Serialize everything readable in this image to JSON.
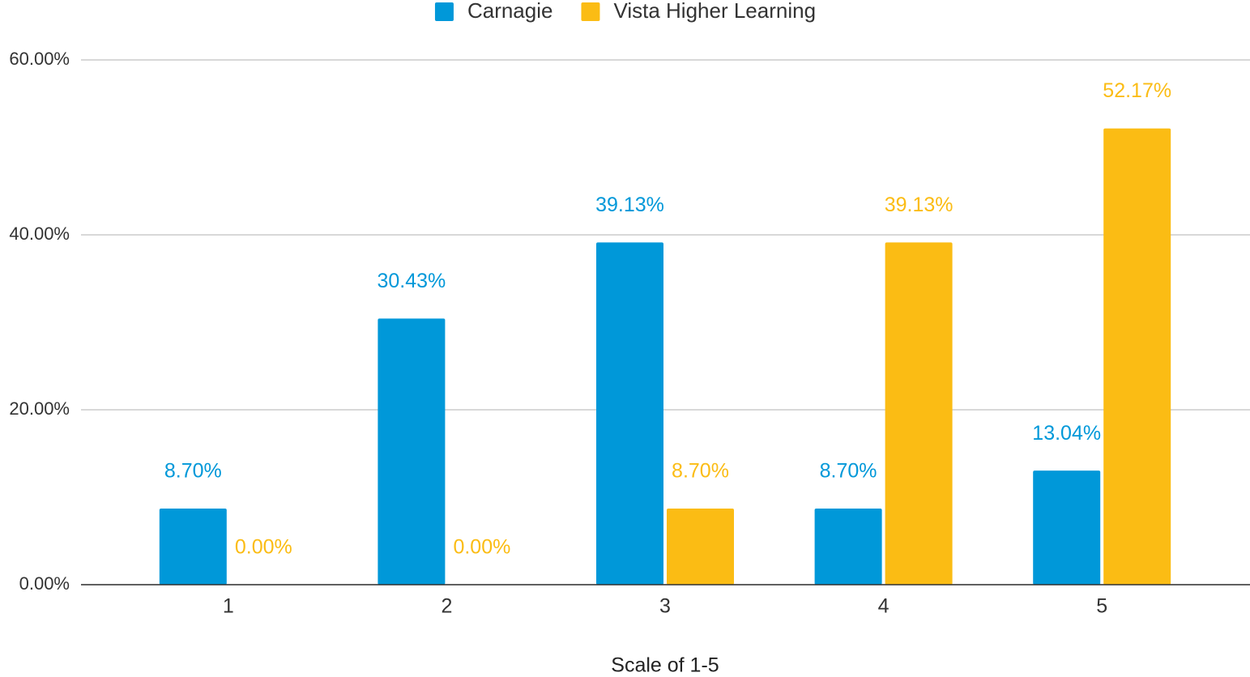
{
  "chart_data": {
    "type": "bar",
    "x_label": "Scale of 1-5",
    "categories": [
      "1",
      "2",
      "3",
      "4",
      "5"
    ],
    "series": [
      {
        "name": "Carnagie",
        "color": "#0098d9",
        "values": [
          8.7,
          30.43,
          39.13,
          8.7,
          13.04
        ],
        "value_labels": [
          "8.70%",
          "30.43%",
          "39.13%",
          "8.70%",
          "13.04%"
        ]
      },
      {
        "name": "Vista Higher Learning",
        "color": "#fbbc14",
        "values": [
          0.0,
          0.0,
          8.7,
          39.13,
          52.17
        ],
        "value_labels": [
          "0.00%",
          "0.00%",
          "8.70%",
          "39.13%",
          "52.17%"
        ]
      }
    ],
    "ylim": [
      0,
      60
    ],
    "yticks": [
      {
        "value": 0,
        "label": "0.00%"
      },
      {
        "value": 20,
        "label": "20.00%"
      },
      {
        "value": 40,
        "label": "40.00%"
      },
      {
        "value": 60,
        "label": "60.00%"
      }
    ],
    "grid": true,
    "legend": "top"
  }
}
